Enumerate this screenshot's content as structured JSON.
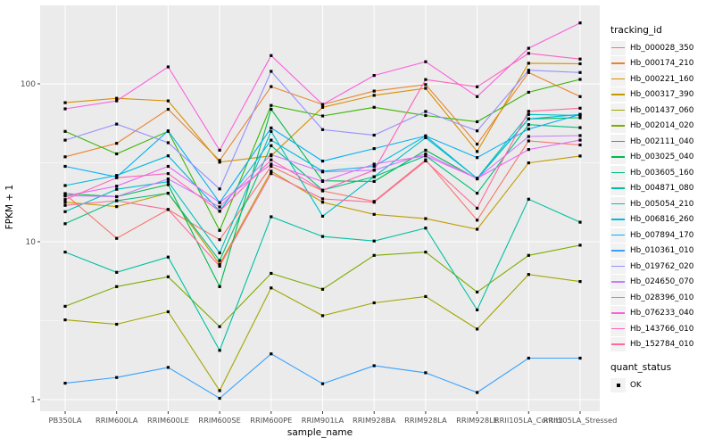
{
  "chart_data": {
    "type": "line",
    "title": "",
    "xlabel": "sample_name",
    "ylabel": "FPKM + 1",
    "y_scale": "log10",
    "ylim": [
      0.93,
      320
    ],
    "y_ticks": [
      1,
      10,
      100
    ],
    "y_minor_ticks": [
      3.162,
      31.62,
      316.2
    ],
    "grid": true,
    "legend_position": "right",
    "marker": "black-square",
    "categories": [
      "PB350LA",
      "RRIM600LA",
      "RRIM600LE",
      "RRIM600SE",
      "RRIM600PE",
      "RRIM901LA",
      "RRIM928BA",
      "RRIM928LA",
      "RRIM928LE",
      "RRII105LA_Control",
      "RRII105LA_Stressed"
    ],
    "series": [
      {
        "name": "Hb_000028_350",
        "color": "#F8766D",
        "values": [
          20,
          10.5,
          16,
          10.3,
          30,
          21,
          18,
          33,
          13.7,
          43.5,
          41
        ]
      },
      {
        "name": "Hb_000174_210",
        "color": "#EA8331",
        "values": [
          34.5,
          42,
          69,
          32.7,
          96,
          74,
          90,
          99,
          41.5,
          118,
          83
        ]
      },
      {
        "name": "Hb_000221_160",
        "color": "#D89000",
        "values": [
          76,
          81,
          78,
          31.9,
          35,
          71,
          84.5,
          93.7,
          37.3,
          135,
          134
        ]
      },
      {
        "name": "Hb_000317_390",
        "color": "#C09B00",
        "values": [
          17.8,
          16.7,
          20.3,
          7.2,
          28,
          17.8,
          14.9,
          14,
          12,
          31.6,
          34.9
        ]
      },
      {
        "name": "Hb_001437_060",
        "color": "#A3A500",
        "values": [
          3.2,
          3.0,
          3.6,
          1.14,
          5.1,
          3.4,
          4.1,
          4.5,
          2.8,
          6.2,
          5.6
        ]
      },
      {
        "name": "Hb_002014_020",
        "color": "#7CAE00",
        "values": [
          3.9,
          5.2,
          6.0,
          2.9,
          6.3,
          5.0,
          8.2,
          8.6,
          4.8,
          8.2,
          9.5
        ]
      },
      {
        "name": "Hb_002111_040",
        "color": "#39B600",
        "values": [
          50,
          36,
          50,
          11.8,
          73,
          62.6,
          71,
          63,
          57.5,
          88.5,
          106.7
        ]
      },
      {
        "name": "Hb_003025_040",
        "color": "#00BB4E",
        "values": [
          20.2,
          19.3,
          23,
          5.2,
          69,
          24.3,
          24.1,
          38,
          25,
          60,
          61
        ]
      },
      {
        "name": "Hb_003605_160",
        "color": "#00BF7D",
        "values": [
          13,
          18.2,
          20.3,
          7.6,
          40.6,
          21.2,
          25.8,
          35,
          20.3,
          55.2,
          52.8
        ]
      },
      {
        "name": "Hb_004871_080",
        "color": "#00C1A3",
        "values": [
          8.6,
          6.4,
          8.0,
          2.05,
          14.4,
          10.8,
          10.1,
          12.2,
          3.7,
          18.6,
          13.3
        ]
      },
      {
        "name": "Hb_005054_210",
        "color": "#00BFC4",
        "values": [
          15.5,
          21.5,
          24,
          8.5,
          50,
          14.5,
          25.8,
          45.6,
          25.2,
          64,
          63
        ]
      },
      {
        "name": "Hb_006816_260",
        "color": "#00BAE0",
        "values": [
          22.7,
          26.3,
          35,
          15.6,
          44,
          28,
          30,
          46.8,
          25.2,
          60,
          64
        ]
      },
      {
        "name": "Hb_007894_170",
        "color": "#00B0F6",
        "values": [
          30,
          25.7,
          50.4,
          17.7,
          52.6,
          32.4,
          38.9,
          46.8,
          34.1,
          51.7,
          64
        ]
      },
      {
        "name": "Hb_010361_010",
        "color": "#35A2FF",
        "values": [
          1.27,
          1.38,
          1.6,
          1.02,
          1.95,
          1.26,
          1.64,
          1.48,
          1.11,
          1.83,
          1.83
        ]
      },
      {
        "name": "Hb_019762_020",
        "color": "#9590FF",
        "values": [
          44,
          55.6,
          42.4,
          21.6,
          120,
          51.3,
          47.3,
          66.8,
          50.4,
          122,
          118
        ]
      },
      {
        "name": "Hb_024650_070",
        "color": "#C77CFF",
        "values": [
          19.6,
          19.3,
          25,
          16.6,
          35.6,
          27.7,
          28.4,
          36,
          25.2,
          46.4,
          47
        ]
      },
      {
        "name": "Hb_028396_010",
        "color": "#E76BF3",
        "values": [
          19.5,
          22.5,
          30,
          17.7,
          31,
          24.1,
          31,
          35,
          25.2,
          38.4,
          44
        ]
      },
      {
        "name": "Hb_076233_040",
        "color": "#FA62DB",
        "values": [
          69.5,
          78,
          128,
          38,
          151,
          73.9,
          113,
          138,
          83,
          168,
          243
        ]
      },
      {
        "name": "Hb_143766_010",
        "color": "#FF62BC",
        "values": [
          18.5,
          25.4,
          27,
          15.6,
          33,
          21.2,
          28.4,
          106.5,
          95.8,
          156,
          143.5
        ]
      },
      {
        "name": "Hb_152784_010",
        "color": "#FF6A98",
        "values": [
          17,
          18.2,
          16,
          7.0,
          27,
          18.7,
          17.8,
          32.5,
          16.3,
          67,
          70.1
        ]
      }
    ]
  },
  "legend": {
    "tracking_title": "tracking_id",
    "quant_title": "quant_status",
    "quant_entries": [
      "OK"
    ]
  },
  "colors": {
    "panel_bg": "#EBEBEB",
    "grid": "#FFFFFF",
    "marker": "#000000",
    "key_bg": "#F2F2F2",
    "axis_text": "#4D4D4D",
    "tick_mark": "#333333"
  }
}
